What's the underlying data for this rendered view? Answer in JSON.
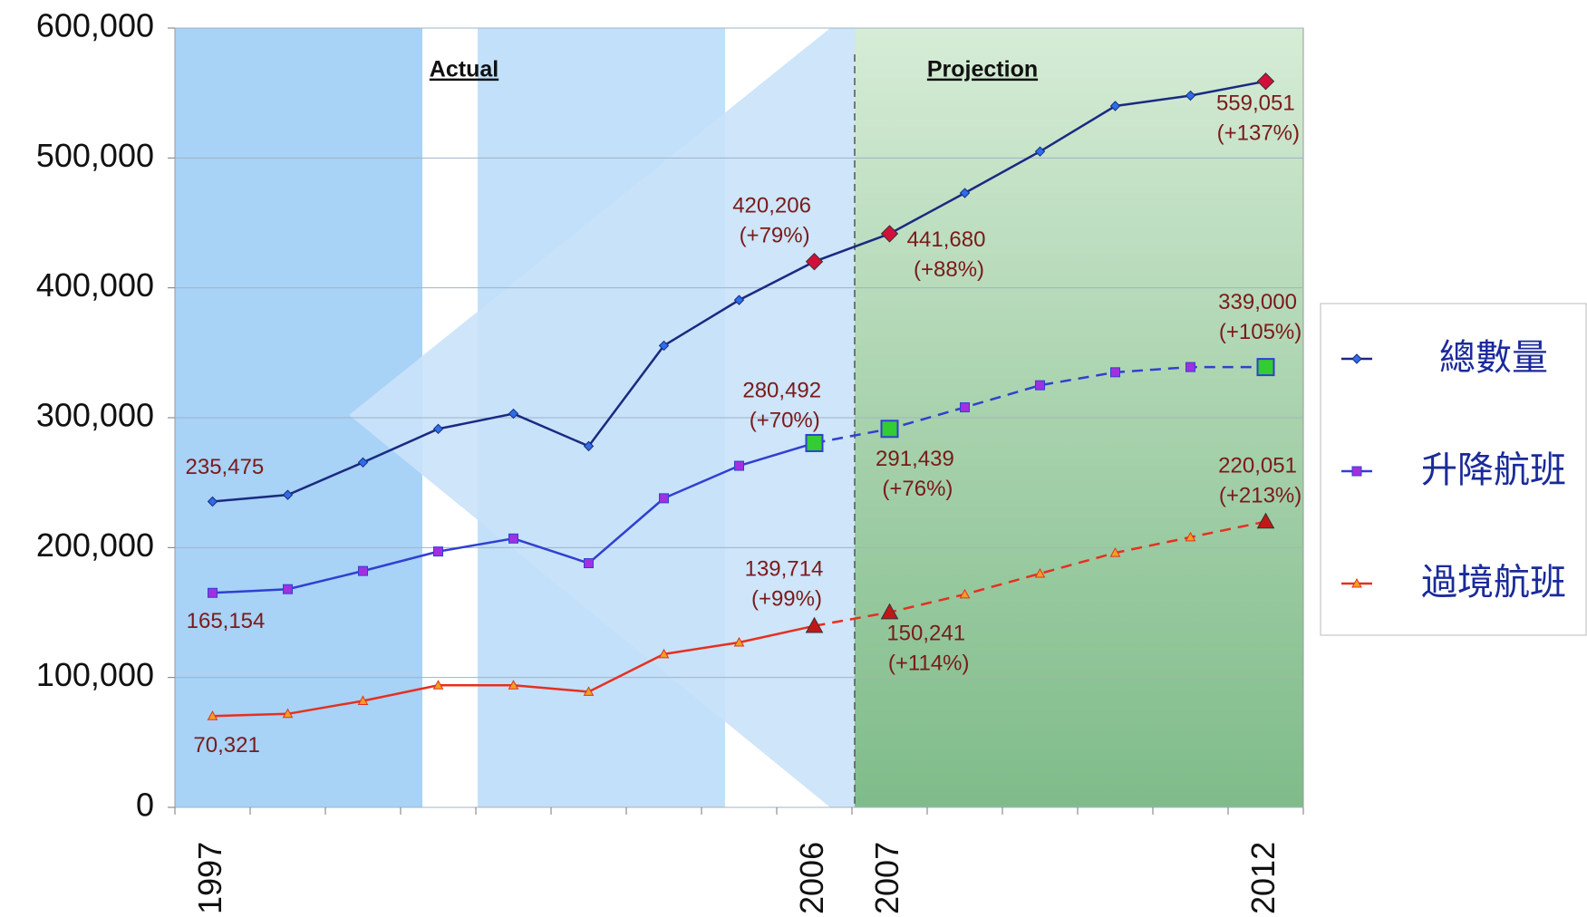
{
  "chart_data": {
    "type": "line",
    "categories": [
      "1997",
      null,
      null,
      null,
      null,
      null,
      null,
      null,
      "2006",
      "2007",
      null,
      null,
      null,
      null,
      "2012"
    ],
    "region_labels": [
      "Actual",
      "Projection"
    ],
    "ylim": [
      0,
      600000
    ],
    "yticks": [
      0,
      {
        "value": 100000,
        "label": "100,000"
      },
      {
        "value": 200000,
        "label": "200,000"
      },
      {
        "value": 300000,
        "label": "300,000"
      },
      {
        "value": 400000,
        "label": "400,000"
      },
      {
        "value": 500000,
        "label": "500,000"
      },
      {
        "value": 600000,
        "label": "600,000"
      }
    ],
    "grid": true,
    "legend": "right",
    "series": [
      {
        "name": "總數量",
        "color": "#1a2a80",
        "marker": "diamond",
        "marker_color": "#2c6ee8",
        "highlight_color": "#d0103a",
        "dashed": false,
        "values": [
          235475,
          240600,
          265600,
          291400,
          303100,
          278100,
          355500,
          390600,
          420206,
          441680,
          473000,
          505000,
          540000,
          548000,
          559051
        ],
        "value_labels": [
          "235,475",
          null,
          null,
          null,
          null,
          null,
          null,
          null,
          "420,206",
          "441,680",
          null,
          null,
          null,
          null,
          "559,051"
        ],
        "changes": [
          null,
          null,
          null,
          null,
          null,
          null,
          null,
          null,
          "(+79%)",
          "(+88%)",
          null,
          null,
          null,
          null,
          "(+137%)"
        ]
      },
      {
        "name": "升降航班",
        "color": "#3040d0",
        "marker": "square",
        "marker_color": "#a030e0",
        "highlight_color": "#33cc33",
        "dashed": true,
        "values": [
          165154,
          168000,
          182000,
          197000,
          207000,
          188000,
          238000,
          263000,
          280492,
          291439,
          308000,
          325000,
          335000,
          339000,
          339000
        ],
        "value_labels": [
          "165,154",
          null,
          null,
          null,
          null,
          null,
          null,
          null,
          "280,492",
          "291,439",
          null,
          null,
          null,
          null,
          "339,000"
        ],
        "changes": [
          null,
          null,
          null,
          null,
          null,
          null,
          null,
          null,
          "(+70%)",
          "(+76%)",
          null,
          null,
          null,
          null,
          "(+105%)"
        ]
      },
      {
        "name": "過境航班",
        "color": "#e53020",
        "marker": "triangle",
        "marker_color": "#f0a020",
        "highlight_color": "#c01818",
        "dashed": true,
        "values": [
          70321,
          72000,
          82000,
          94000,
          94000,
          89000,
          118000,
          127000,
          139714,
          150241,
          164000,
          180000,
          196000,
          208000,
          220051
        ],
        "value_labels": [
          "70,321",
          null,
          null,
          null,
          null,
          null,
          null,
          null,
          "139,714",
          "150,241",
          null,
          null,
          null,
          null,
          "220,051"
        ],
        "changes": [
          null,
          null,
          null,
          null,
          null,
          null,
          null,
          null,
          "(+99%)",
          "(+114%)",
          null,
          null,
          null,
          null,
          "(+213%)"
        ]
      }
    ]
  }
}
